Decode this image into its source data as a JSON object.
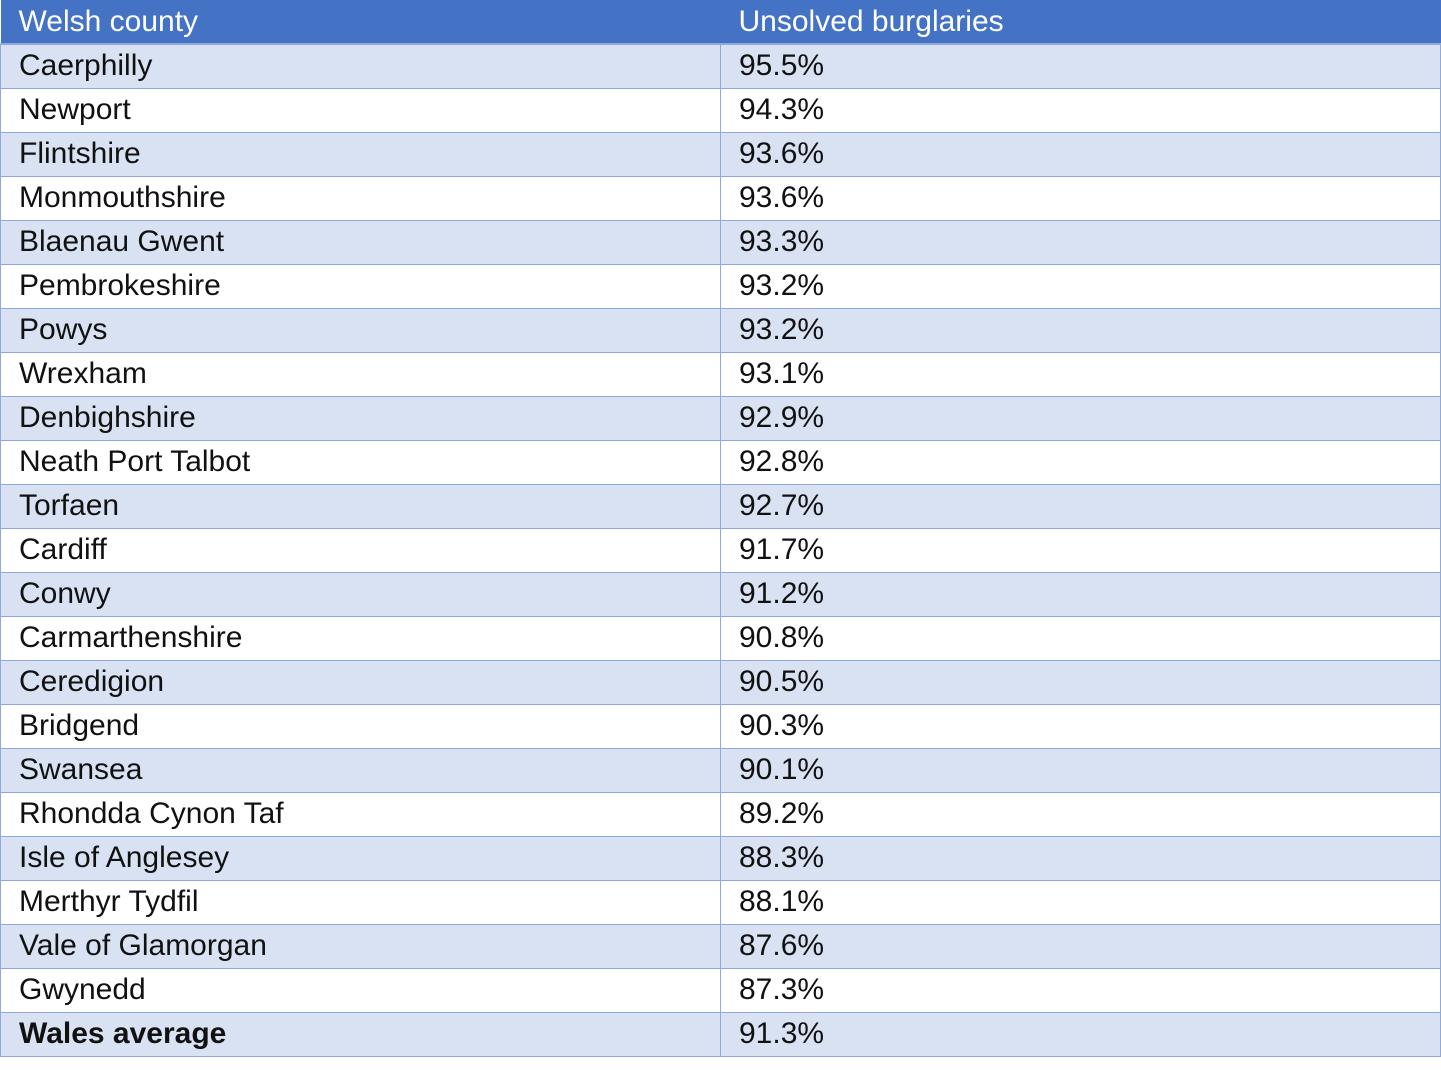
{
  "table": {
    "headers": {
      "county": "Welsh county",
      "burglaries": "Unsolved burglaries"
    },
    "rows": [
      {
        "county": "Caerphilly",
        "value": "95.5%"
      },
      {
        "county": "Newport",
        "value": "94.3%"
      },
      {
        "county": "Flintshire",
        "value": "93.6%"
      },
      {
        "county": "Monmouthshire",
        "value": "93.6%"
      },
      {
        "county": "Blaenau Gwent",
        "value": "93.3%"
      },
      {
        "county": "Pembrokeshire",
        "value": "93.2%"
      },
      {
        "county": "Powys",
        "value": "93.2%"
      },
      {
        "county": "Wrexham",
        "value": "93.1%"
      },
      {
        "county": "Denbighshire",
        "value": "92.9%"
      },
      {
        "county": "Neath Port Talbot",
        "value": "92.8%"
      },
      {
        "county": "Torfaen",
        "value": "92.7%"
      },
      {
        "county": "Cardiff",
        "value": "91.7%"
      },
      {
        "county": "Conwy",
        "value": "91.2%"
      },
      {
        "county": "Carmarthenshire",
        "value": "90.8%"
      },
      {
        "county": "Ceredigion",
        "value": "90.5%"
      },
      {
        "county": "Bridgend",
        "value": "90.3%"
      },
      {
        "county": "Swansea",
        "value": "90.1%"
      },
      {
        "county": "Rhondda Cynon Taf",
        "value": "89.2%"
      },
      {
        "county": "Isle of Anglesey",
        "value": "88.3%"
      },
      {
        "county": "Merthyr Tydfil",
        "value": "88.1%"
      },
      {
        "county": "Vale of Glamorgan",
        "value": "87.6%"
      },
      {
        "county": "Gwynedd",
        "value": "87.3%"
      }
    ],
    "total": {
      "county": "Wales average",
      "value": "91.3%"
    }
  },
  "colors": {
    "header_bg": "#4472c4",
    "header_text": "#ffffff",
    "band_row": "#d9e2f3",
    "plain_row": "#ffffff",
    "border": "#8eaadb"
  }
}
